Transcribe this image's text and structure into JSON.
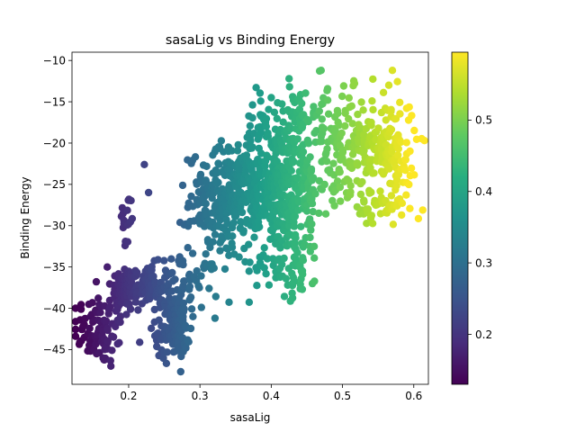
{
  "chart_data": {
    "type": "scatter",
    "title": "sasaLig vs Binding Energy",
    "xlabel": "sasaLig",
    "ylabel": "Binding Energy",
    "xlim": [
      0.1205,
      0.6205
    ],
    "ylim": [
      -49.2,
      -9.0
    ],
    "xticks": [
      0.2,
      0.3,
      0.4,
      0.5,
      0.6
    ],
    "xtick_labels": [
      "0.2",
      "0.3",
      "0.4",
      "0.5",
      "0.6"
    ],
    "yticks": [
      -45,
      -40,
      -35,
      -30,
      -25,
      -20,
      -15,
      -10
    ],
    "ytick_labels": [
      "−45",
      "−40",
      "−35",
      "−30",
      "−25",
      "−20",
      "−15",
      "−10"
    ],
    "grid": false,
    "colormap": "viridis",
    "color_encodes": "x",
    "colorbar": {
      "range": [
        0.13,
        0.595
      ],
      "ticks": [
        0.2,
        0.3,
        0.4,
        0.5
      ],
      "tick_labels": [
        "0.2",
        "0.3",
        "0.4",
        "0.5"
      ]
    },
    "clusters": [
      {
        "x_center": 0.16,
        "x_spread": 0.02,
        "y_center": -42.5,
        "y_spread": 2.2,
        "count": 90
      },
      {
        "x_center": 0.195,
        "x_spread": 0.01,
        "y_center": -37.5,
        "y_spread": 1.5,
        "count": 70
      },
      {
        "x_center": 0.198,
        "x_spread": 0.005,
        "y_center": -29.5,
        "y_spread": 1.8,
        "count": 20
      },
      {
        "x_center": 0.225,
        "x_spread": 0.018,
        "y_center": -37.5,
        "y_spread": 1.4,
        "count": 100
      },
      {
        "x_center": 0.262,
        "x_spread": 0.012,
        "y_center": -42.5,
        "y_spread": 1.8,
        "count": 120
      },
      {
        "x_center": 0.285,
        "x_spread": 0.02,
        "y_center": -37.0,
        "y_spread": 2.0,
        "count": 60
      },
      {
        "x_center": 0.335,
        "x_spread": 0.025,
        "y_center": -27.0,
        "y_spread": 3.0,
        "count": 220
      },
      {
        "x_center": 0.41,
        "x_spread": 0.035,
        "y_center": -25.0,
        "y_spread": 4.0,
        "count": 450
      },
      {
        "x_center": 0.42,
        "x_spread": 0.025,
        "y_center": -34.5,
        "y_spread": 2.0,
        "count": 70
      },
      {
        "x_center": 0.43,
        "x_spread": 0.025,
        "y_center": -16.5,
        "y_spread": 2.0,
        "count": 60
      },
      {
        "x_center": 0.51,
        "x_spread": 0.03,
        "y_center": -20.0,
        "y_spread": 3.0,
        "count": 150
      },
      {
        "x_center": 0.565,
        "x_spread": 0.02,
        "y_center": -20.5,
        "y_spread": 3.0,
        "count": 120
      },
      {
        "x_center": 0.555,
        "x_spread": 0.02,
        "y_center": -28.0,
        "y_spread": 1.3,
        "count": 50
      }
    ],
    "outliers": [
      {
        "x": 0.222,
        "y": -22.6
      },
      {
        "x": 0.228,
        "y": -26.0
      },
      {
        "x": 0.17,
        "y": -35.0
      },
      {
        "x": 0.155,
        "y": -45.5
      },
      {
        "x": 0.175,
        "y": -47.0
      },
      {
        "x": 0.425,
        "y": -12.2
      },
      {
        "x": 0.47,
        "y": -11.2
      },
      {
        "x": 0.57,
        "y": -11.2
      },
      {
        "x": 0.565,
        "y": -13.0
      },
      {
        "x": 0.59,
        "y": -15.8
      },
      {
        "x": 0.59,
        "y": -24.8
      },
      {
        "x": 0.4,
        "y": -14.5
      },
      {
        "x": 0.355,
        "y": -23.0
      },
      {
        "x": 0.28,
        "y": -29.8
      }
    ]
  }
}
